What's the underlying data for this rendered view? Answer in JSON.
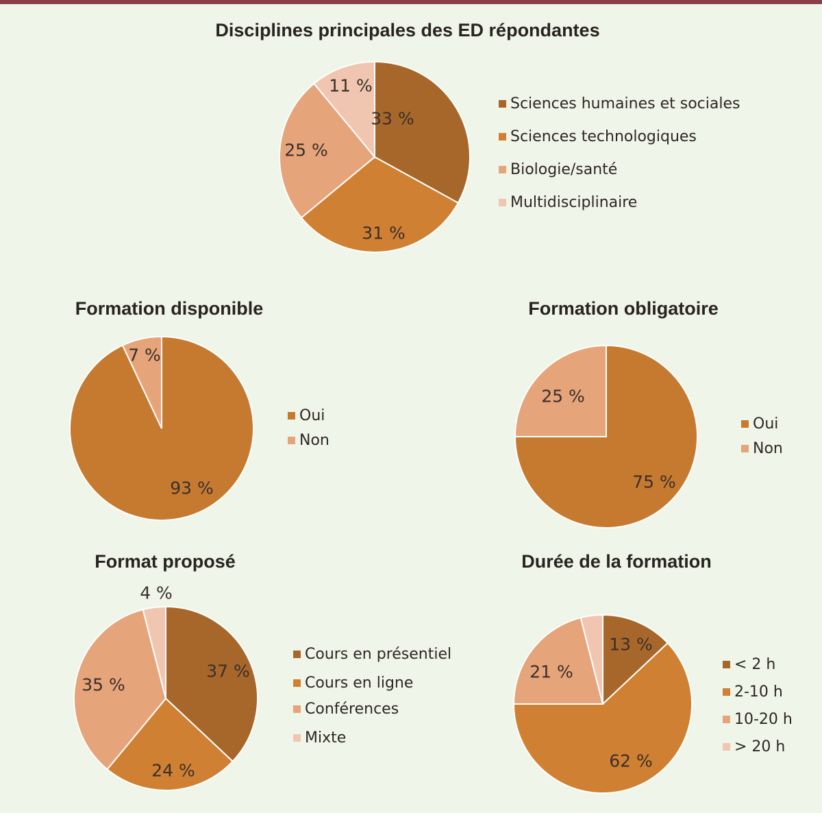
{
  "colors": {
    "dark_brown": "#a8672a",
    "orange": "#cf8032",
    "salmon": "#e6a47a",
    "light_pink": "#f0c6b1",
    "background": "#eff5e9",
    "top_bar": "#8b3e46"
  },
  "chart_data": [
    {
      "id": "disciplines",
      "type": "pie",
      "title": "Disciplines principales des ED répondantes",
      "categories": [
        "Sciences humaines et sociales",
        "Sciences technologiques",
        "Biologie/santé",
        "Multidisciplinaire"
      ],
      "values": [
        33,
        31,
        25,
        11
      ],
      "labels": [
        "33 %",
        "31 %",
        "25 %",
        "11 %"
      ],
      "colors": [
        "#a8672a",
        "#cf8032",
        "#e6a47a",
        "#f0c6b1"
      ],
      "legend_position": "right"
    },
    {
      "id": "disponible",
      "type": "pie",
      "title": "Formation disponible",
      "categories": [
        "Oui",
        "Non"
      ],
      "values": [
        93,
        7
      ],
      "labels": [
        "93 %",
        "7 %"
      ],
      "colors": [
        "#c67a30",
        "#e6a47a"
      ],
      "legend_position": "right"
    },
    {
      "id": "obligatoire",
      "type": "pie",
      "title": "Formation obligatoire",
      "categories": [
        "Oui",
        "Non"
      ],
      "values": [
        75,
        25
      ],
      "labels": [
        "75 %",
        "25 %"
      ],
      "colors": [
        "#c67a30",
        "#e6a47a"
      ],
      "legend_position": "right"
    },
    {
      "id": "format",
      "type": "pie",
      "title": "Format proposé",
      "categories": [
        "Cours en présentiel",
        "Cours en ligne",
        "Conférences",
        "Mixte"
      ],
      "values": [
        37,
        24,
        35,
        4
      ],
      "labels": [
        "37 %",
        "24 %",
        "35 %",
        "4 %"
      ],
      "colors": [
        "#a8672a",
        "#cf8032",
        "#e6a47a",
        "#f0c6b1"
      ],
      "legend_position": "right"
    },
    {
      "id": "duree",
      "type": "pie",
      "title": "Durée de la formation",
      "categories": [
        "< 2 h",
        "2-10 h",
        "10-20 h",
        "> 20 h"
      ],
      "values": [
        13,
        62,
        21,
        4
      ],
      "labels": [
        "13 %",
        "62 %",
        "21 %",
        ""
      ],
      "colors": [
        "#a8672a",
        "#cf8032",
        "#e6a47a",
        "#f0c6b1"
      ],
      "legend_position": "right"
    }
  ]
}
